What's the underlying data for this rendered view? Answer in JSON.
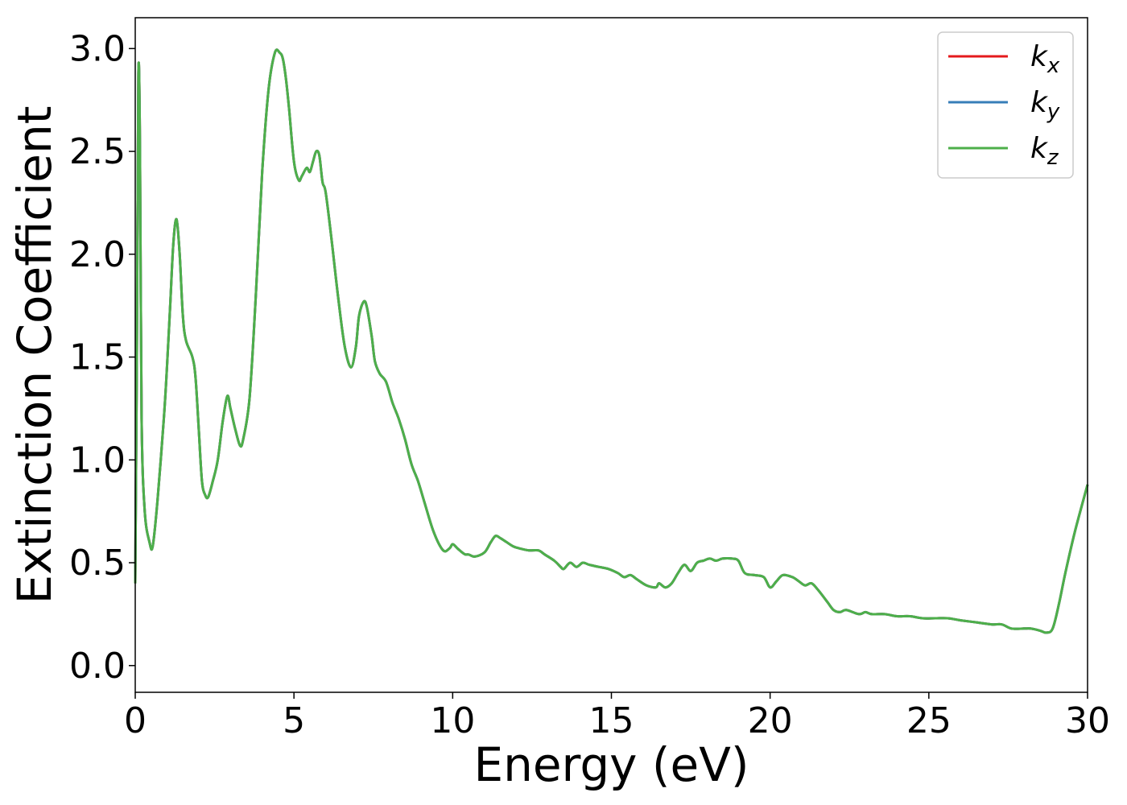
{
  "chart_data": {
    "type": "line",
    "title": "",
    "xlabel": "Energy (eV)",
    "ylabel": "Extinction Coefficient",
    "xlim": [
      0,
      30
    ],
    "ylim": [
      -0.13,
      3.15
    ],
    "xticks": [
      0,
      5,
      10,
      15,
      20,
      25,
      30
    ],
    "xtick_labels": [
      "0",
      "5",
      "10",
      "15",
      "20",
      "25",
      "30"
    ],
    "yticks": [
      0.0,
      0.5,
      1.0,
      1.5,
      2.0,
      2.5,
      3.0
    ],
    "ytick_labels": [
      "0.0",
      "0.5",
      "1.0",
      "1.5",
      "2.0",
      "2.5",
      "3.0"
    ],
    "grid": false,
    "legend_position": "top-right",
    "series": [
      {
        "name": "k_x",
        "label_main": "k",
        "label_sub": "x",
        "color": "#e41a1c"
      },
      {
        "name": "k_y",
        "label_main": "k",
        "label_sub": "y",
        "color": "#377eb8"
      },
      {
        "name": "k_z",
        "label_main": "k",
        "label_sub": "z",
        "color": "#4daf4a"
      }
    ],
    "x": [
      0.0,
      0.05,
      0.1,
      0.15,
      0.2,
      0.3,
      0.45,
      0.55,
      0.7,
      0.9,
      1.0,
      1.1,
      1.2,
      1.3,
      1.4,
      1.5,
      1.6,
      1.8,
      1.9,
      2.0,
      2.1,
      2.2,
      2.3,
      2.45,
      2.6,
      2.75,
      2.9,
      3.0,
      3.15,
      3.3,
      3.4,
      3.6,
      3.8,
      4.0,
      4.2,
      4.4,
      4.55,
      4.65,
      4.75,
      4.85,
      5.0,
      5.15,
      5.25,
      5.4,
      5.5,
      5.6,
      5.7,
      5.8,
      5.9,
      6.0,
      6.2,
      6.4,
      6.6,
      6.8,
      6.95,
      7.05,
      7.2,
      7.3,
      7.45,
      7.55,
      7.7,
      7.9,
      8.1,
      8.3,
      8.5,
      8.7,
      8.9,
      9.1,
      9.4,
      9.7,
      9.9,
      10.0,
      10.15,
      10.3,
      10.4,
      10.5,
      10.7,
      11.0,
      11.2,
      11.35,
      11.5,
      11.7,
      11.9,
      12.1,
      12.4,
      12.7,
      12.9,
      13.2,
      13.4,
      13.5,
      13.7,
      13.9,
      14.1,
      14.3,
      14.6,
      14.9,
      15.2,
      15.4,
      15.6,
      15.8,
      16.1,
      16.4,
      16.5,
      16.7,
      16.9,
      17.1,
      17.3,
      17.5,
      17.7,
      17.9,
      18.1,
      18.3,
      18.5,
      18.8,
      19.0,
      19.2,
      19.5,
      19.8,
      20.0,
      20.2,
      20.4,
      20.7,
      20.9,
      21.1,
      21.3,
      21.5,
      21.8,
      22.0,
      22.2,
      22.4,
      22.8,
      23.0,
      23.2,
      23.6,
      24.0,
      24.4,
      24.8,
      25.2,
      25.6,
      26.0,
      26.5,
      27.0,
      27.3,
      27.6,
      28.0,
      28.2,
      28.5,
      28.7,
      28.9,
      29.1,
      29.3,
      29.6,
      30.0
    ],
    "values": [
      0.4,
      1.5,
      2.88,
      2.5,
      1.2,
      0.75,
      0.6,
      0.58,
      0.8,
      1.2,
      1.45,
      1.75,
      2.05,
      2.17,
      2.0,
      1.7,
      1.58,
      1.5,
      1.4,
      1.15,
      0.9,
      0.83,
      0.82,
      0.9,
      1.0,
      1.18,
      1.31,
      1.25,
      1.15,
      1.07,
      1.1,
      1.3,
      1.8,
      2.4,
      2.8,
      2.98,
      2.98,
      2.95,
      2.85,
      2.7,
      2.45,
      2.36,
      2.38,
      2.42,
      2.4,
      2.45,
      2.5,
      2.48,
      2.35,
      2.3,
      2.05,
      1.78,
      1.55,
      1.45,
      1.55,
      1.7,
      1.77,
      1.74,
      1.6,
      1.48,
      1.42,
      1.38,
      1.28,
      1.2,
      1.1,
      0.98,
      0.9,
      0.8,
      0.65,
      0.56,
      0.57,
      0.59,
      0.57,
      0.55,
      0.54,
      0.54,
      0.53,
      0.55,
      0.6,
      0.63,
      0.62,
      0.6,
      0.58,
      0.57,
      0.56,
      0.56,
      0.54,
      0.51,
      0.48,
      0.47,
      0.5,
      0.48,
      0.5,
      0.49,
      0.48,
      0.47,
      0.45,
      0.43,
      0.44,
      0.42,
      0.39,
      0.38,
      0.4,
      0.38,
      0.4,
      0.45,
      0.49,
      0.46,
      0.5,
      0.51,
      0.52,
      0.51,
      0.52,
      0.52,
      0.51,
      0.45,
      0.44,
      0.43,
      0.38,
      0.41,
      0.44,
      0.43,
      0.41,
      0.39,
      0.4,
      0.37,
      0.31,
      0.27,
      0.26,
      0.27,
      0.25,
      0.26,
      0.25,
      0.25,
      0.24,
      0.24,
      0.23,
      0.23,
      0.23,
      0.22,
      0.21,
      0.2,
      0.2,
      0.18,
      0.18,
      0.18,
      0.17,
      0.16,
      0.18,
      0.3,
      0.45,
      0.65,
      0.88
    ]
  }
}
